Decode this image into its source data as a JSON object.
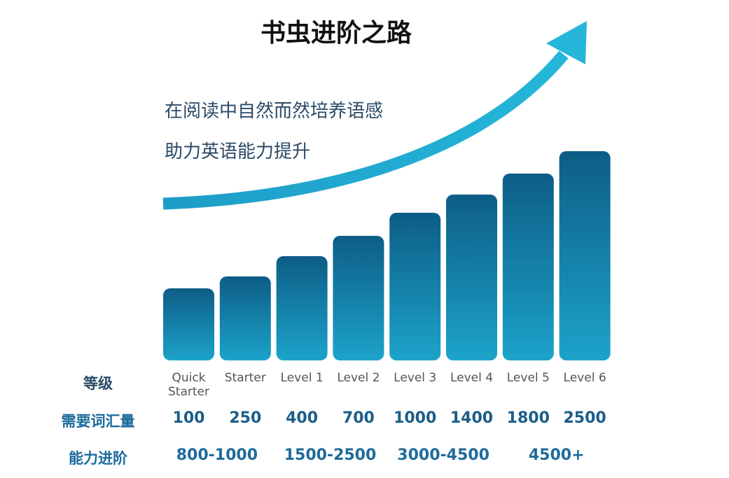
{
  "title": "书虫进阶之路",
  "subtitle": [
    "在阅读中自然而然培养语感",
    "助力英语能力提升"
  ],
  "table": {
    "row_labels": [
      "等级",
      "需要词汇量",
      "能力进阶"
    ],
    "levels": [
      "Quick Starter",
      "Starter",
      "Level 1",
      "Level 2",
      "Level 3",
      "Level 4",
      "Level 5",
      "Level 6"
    ],
    "vocabulary": [
      "100",
      "250",
      "400",
      "700",
      "1000",
      "1400",
      "1800",
      "2500"
    ],
    "ability": [
      "800-1000",
      "1500-2500",
      "3000-4500",
      "4500+"
    ]
  }
}
